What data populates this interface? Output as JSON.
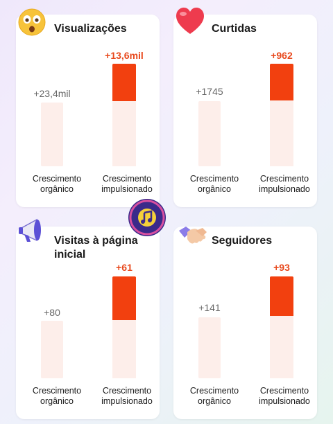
{
  "cards": [
    {
      "title": "Visualizações",
      "icon": "astonished-face-icon",
      "organic_value": "+23,4mil",
      "boosted_value": "+13,6mil",
      "organic_label": "Crescimento orgânico",
      "boosted_label": "Crescimento impulsionado"
    },
    {
      "title": "Curtidas",
      "icon": "heart-icon",
      "organic_value": "+1745",
      "boosted_value": "+962",
      "organic_label": "Crescimento orgânico",
      "boosted_label": "Crescimento impulsionado"
    },
    {
      "title": "Visitas à página inicial",
      "icon": "megaphone-icon",
      "organic_value": "+80",
      "boosted_value": "+61",
      "organic_label": "Crescimento orgânico",
      "boosted_label": "Crescimento impulsionado"
    },
    {
      "title": "Seguidores",
      "icon": "handshake-icon",
      "organic_value": "+141",
      "boosted_value": "+93",
      "organic_label": "Crescimento orgânico",
      "boosted_label": "Crescimento impulsionado"
    }
  ],
  "colors": {
    "boost": "#f2400f",
    "boost_text": "#e8491d",
    "bar_light": "#fdeeea",
    "card_bg": "#ffffff"
  },
  "watermark_icon": "music-note-badge-icon"
}
